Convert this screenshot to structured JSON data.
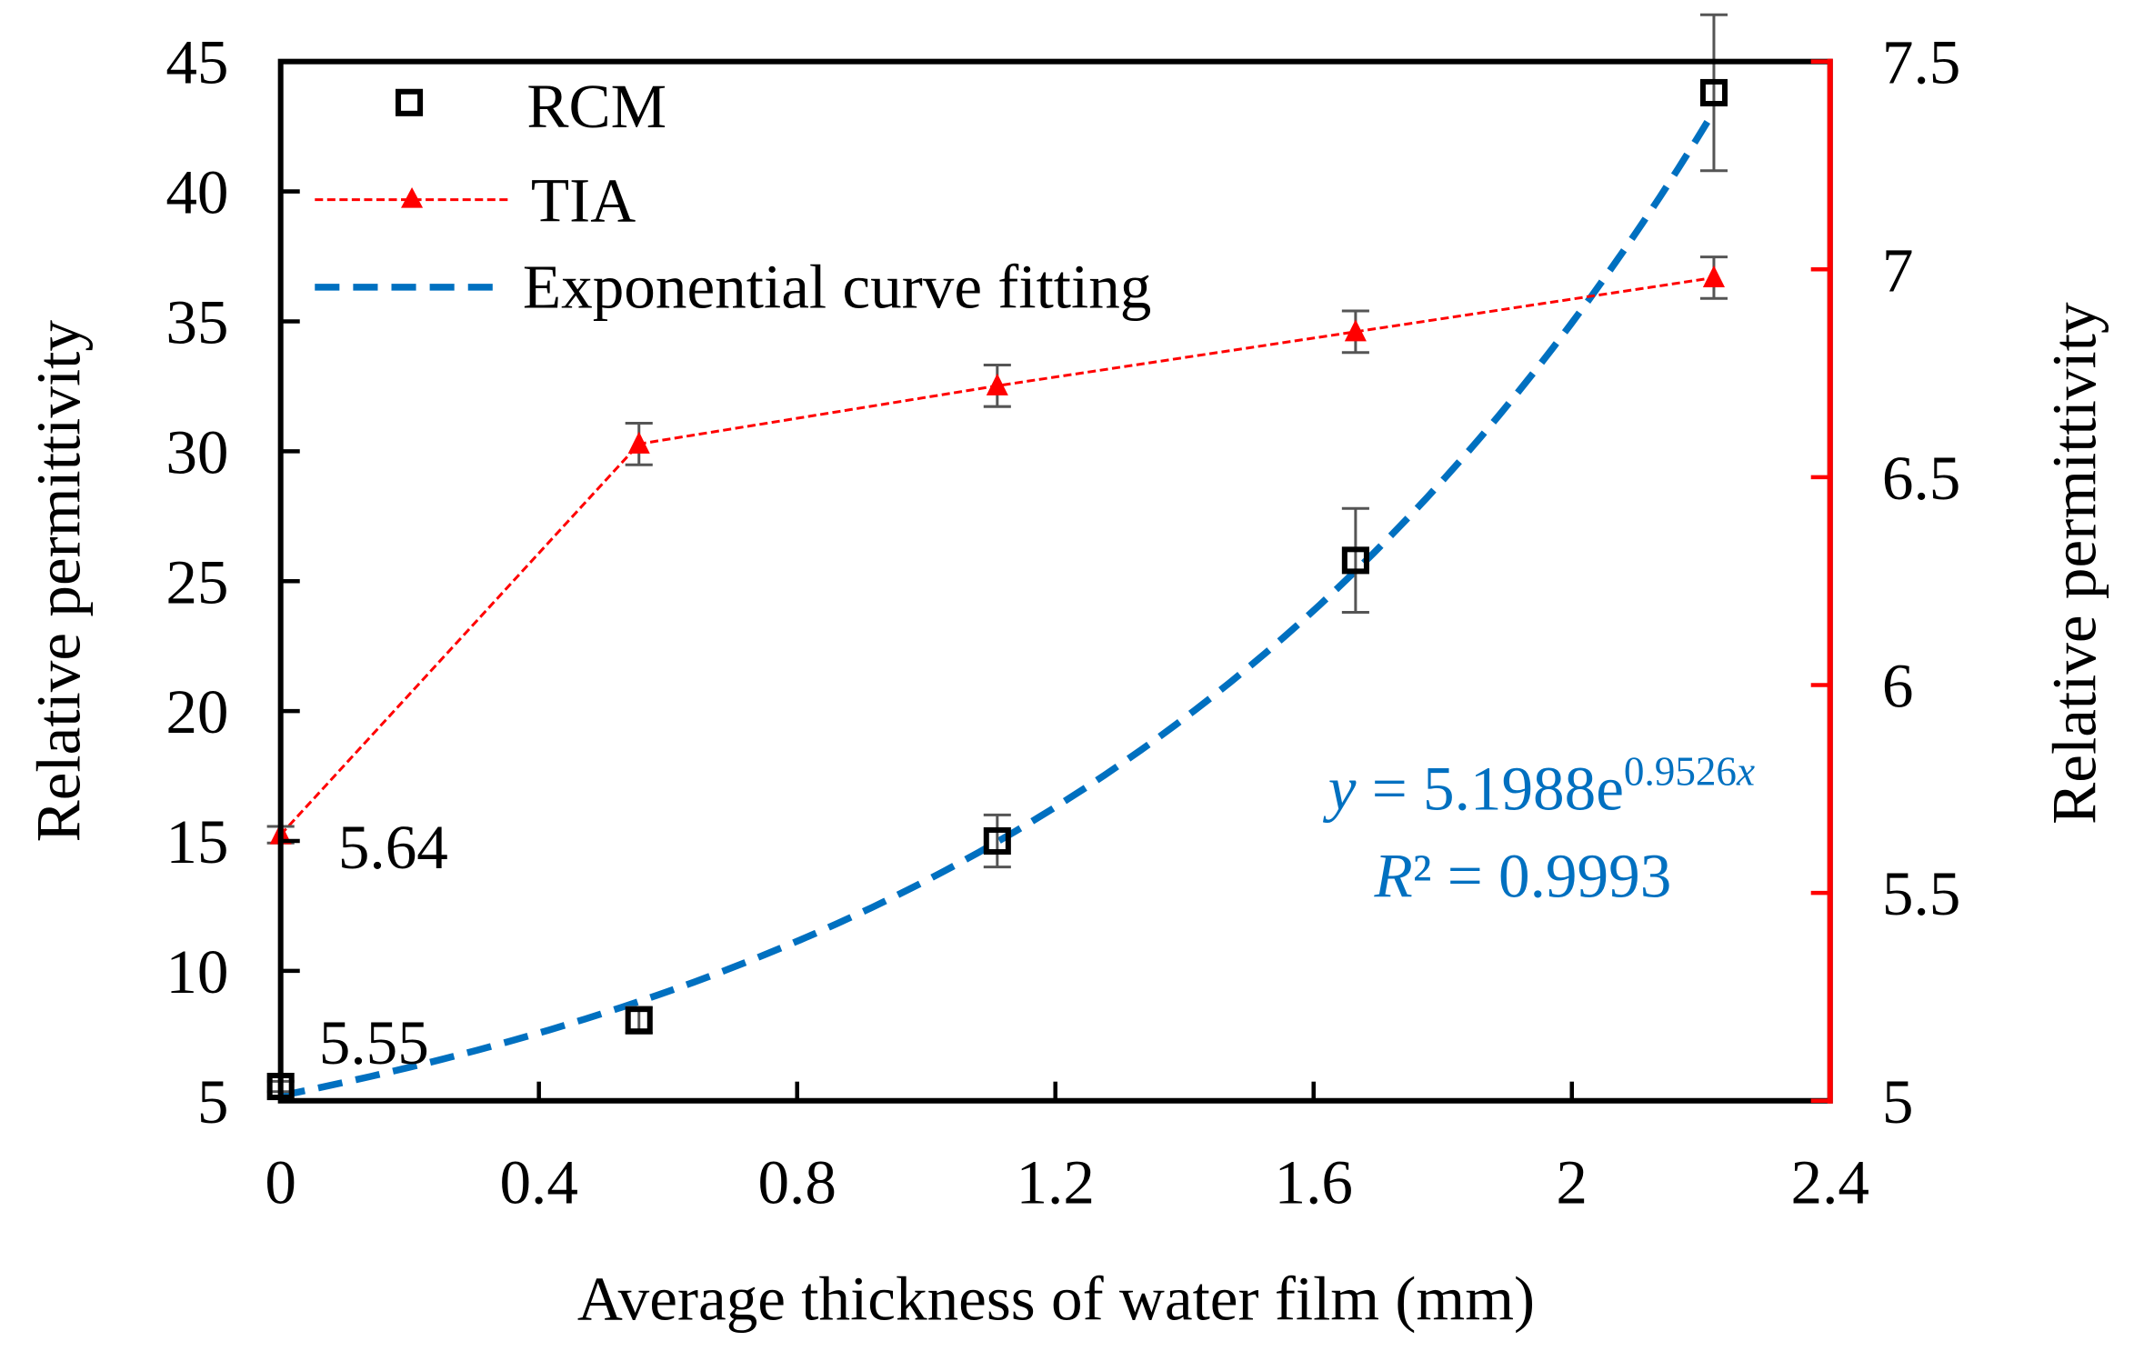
{
  "chart_data": {
    "type": "line",
    "title": "",
    "xlabel": "Average thickness of water film (mm)",
    "ylabel_left": "Relative permittivity",
    "ylabel_right": "Relative permittivity",
    "xlim": [
      0,
      2.4
    ],
    "ylim_left": [
      5,
      45
    ],
    "ylim_right": [
      5,
      7.5
    ],
    "x_ticks": [
      "0",
      "0.4",
      "0.8",
      "1.2",
      "1.6",
      "2",
      "2.4"
    ],
    "y_left_ticks": [
      "5",
      "10",
      "15",
      "20",
      "25",
      "30",
      "35",
      "40",
      "45"
    ],
    "y_right_ticks": [
      "5",
      "5.5",
      "6",
      "6.5",
      "7",
      "7.5"
    ],
    "grid": false,
    "legend_position": "top-left",
    "series": [
      {
        "name": "RCM",
        "axis": "left",
        "color": "#000000",
        "marker": "square",
        "x": [
          0,
          0.555,
          1.11,
          1.665,
          2.22
        ],
        "y": [
          5.55,
          8.1,
          15.0,
          25.8,
          43.8
        ],
        "err": [
          0.2,
          0.5,
          1.0,
          2.0,
          3.0
        ]
      },
      {
        "name": "TIA",
        "axis": "right",
        "color": "#FF0000",
        "marker": "triangle",
        "x": [
          0,
          0.555,
          1.11,
          1.665,
          2.22
        ],
        "y": [
          5.64,
          6.58,
          6.72,
          6.85,
          6.98
        ],
        "err": [
          0.02,
          0.05,
          0.05,
          0.05,
          0.05
        ]
      },
      {
        "name": "Exponential curve fitting",
        "axis": "left",
        "color": "#0070C0",
        "fit": {
          "a": 5.1988,
          "b": 0.9526
        },
        "x_range": [
          0,
          2.22
        ]
      }
    ],
    "annotations": {
      "rcm_start": "5.55",
      "tia_start": "5.64",
      "equation_y": "y",
      "equation_rest": " = 5.1988e",
      "equation_exp": "0.9526",
      "equation_exp_x": "x",
      "r2_R": "R",
      "r2_rest": "² = 0.9993"
    }
  }
}
